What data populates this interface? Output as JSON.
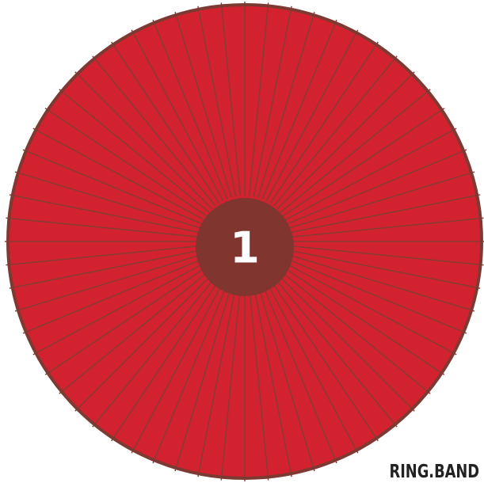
{
  "wheel": {
    "segment_count": 64,
    "colors": {
      "segment_fill": "#d3222f",
      "divider": "#8a3a33",
      "rim": "#7d3a33",
      "hub": "#81352f",
      "hub_text": "#ffffff"
    },
    "hub_label": "1"
  },
  "brand": {
    "label": "RING.BAND"
  }
}
